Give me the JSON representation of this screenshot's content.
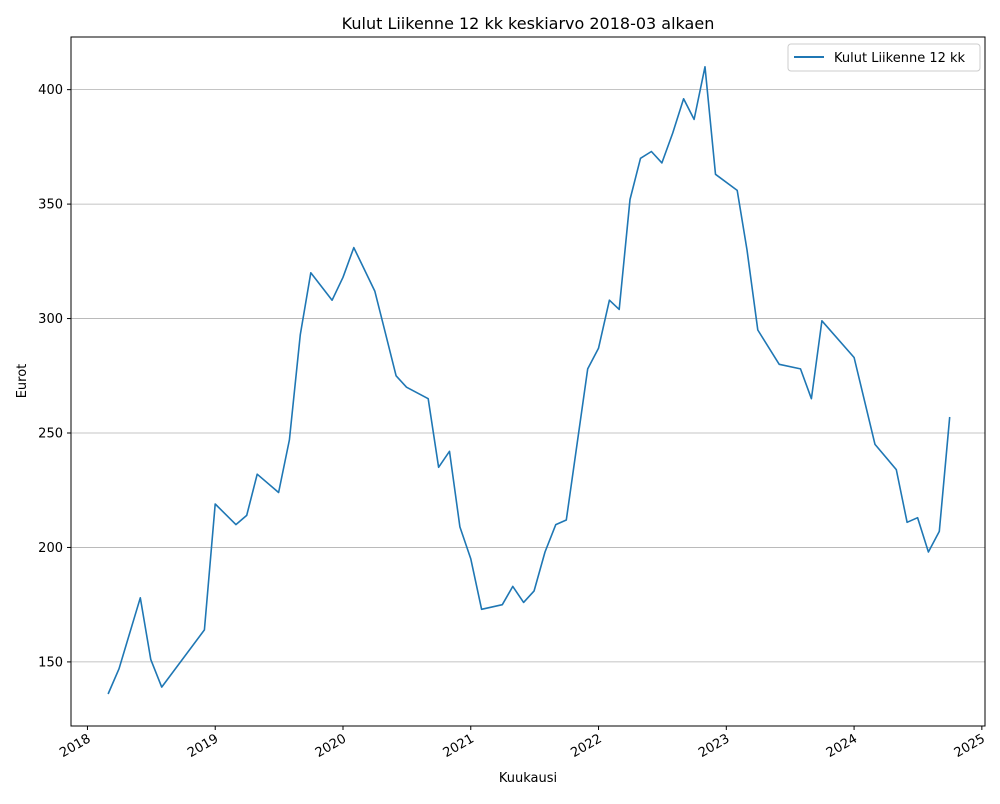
{
  "chart_data": {
    "type": "line",
    "title": "Kulut Liikenne 12 kk keskiarvo 2018-03 alkaen",
    "xlabel": "Kuukausi",
    "ylabel": "Eurot",
    "x_ticks": [
      "2018",
      "2019",
      "2020",
      "2021",
      "2022",
      "2023",
      "2024",
      "2025"
    ],
    "y_ticks": [
      150,
      200,
      250,
      300,
      350,
      400
    ],
    "xlim": [
      "2017-11-15",
      "2025-01-10"
    ],
    "ylim": [
      122,
      423
    ],
    "grid": "horizontal",
    "legend_position": "top-right",
    "series": [
      {
        "name": "Kulut Liikenne 12 kk",
        "color": "#1f77b4",
        "points": [
          [
            "2018-03-01",
            136
          ],
          [
            "2018-04-01",
            147
          ],
          [
            "2018-06-01",
            178
          ],
          [
            "2018-07-01",
            151
          ],
          [
            "2018-08-01",
            139
          ],
          [
            "2018-12-01",
            164
          ],
          [
            "2019-01-01",
            219
          ],
          [
            "2019-03-01",
            210
          ],
          [
            "2019-04-01",
            214
          ],
          [
            "2019-05-01",
            232
          ],
          [
            "2019-07-01",
            224
          ],
          [
            "2019-08-01",
            247
          ],
          [
            "2019-09-01",
            293
          ],
          [
            "2019-10-01",
            320
          ],
          [
            "2019-12-01",
            308
          ],
          [
            "2020-01-01",
            318
          ],
          [
            "2020-02-01",
            331
          ],
          [
            "2020-04-01",
            312
          ],
          [
            "2020-05-01",
            294
          ],
          [
            "2020-06-01",
            275
          ],
          [
            "2020-07-01",
            270
          ],
          [
            "2020-09-01",
            265
          ],
          [
            "2020-10-01",
            235
          ],
          [
            "2020-11-01",
            242
          ],
          [
            "2020-12-01",
            209
          ],
          [
            "2021-01-01",
            195
          ],
          [
            "2021-02-01",
            173
          ],
          [
            "2021-04-01",
            175
          ],
          [
            "2021-05-01",
            183
          ],
          [
            "2021-06-01",
            176
          ],
          [
            "2021-07-01",
            181
          ],
          [
            "2021-08-01",
            198
          ],
          [
            "2021-09-01",
            210
          ],
          [
            "2021-10-01",
            212
          ],
          [
            "2021-12-01",
            278
          ],
          [
            "2022-01-01",
            287
          ],
          [
            "2022-02-01",
            308
          ],
          [
            "2022-03-01",
            304
          ],
          [
            "2022-04-01",
            352
          ],
          [
            "2022-05-01",
            370
          ],
          [
            "2022-06-01",
            373
          ],
          [
            "2022-07-01",
            368
          ],
          [
            "2022-08-01",
            381
          ],
          [
            "2022-09-01",
            396
          ],
          [
            "2022-10-01",
            387
          ],
          [
            "2022-11-01",
            410
          ],
          [
            "2022-12-01",
            363
          ],
          [
            "2023-02-01",
            356
          ],
          [
            "2023-03-01",
            330
          ],
          [
            "2023-04-01",
            295
          ],
          [
            "2023-06-01",
            280
          ],
          [
            "2023-08-01",
            278
          ],
          [
            "2023-09-01",
            265
          ],
          [
            "2023-10-01",
            299
          ],
          [
            "2024-01-01",
            283
          ],
          [
            "2024-03-01",
            245
          ],
          [
            "2024-05-01",
            234
          ],
          [
            "2024-06-01",
            211
          ],
          [
            "2024-07-01",
            213
          ],
          [
            "2024-08-01",
            198
          ],
          [
            "2024-09-01",
            207
          ],
          [
            "2024-10-01",
            257
          ]
        ]
      }
    ]
  }
}
